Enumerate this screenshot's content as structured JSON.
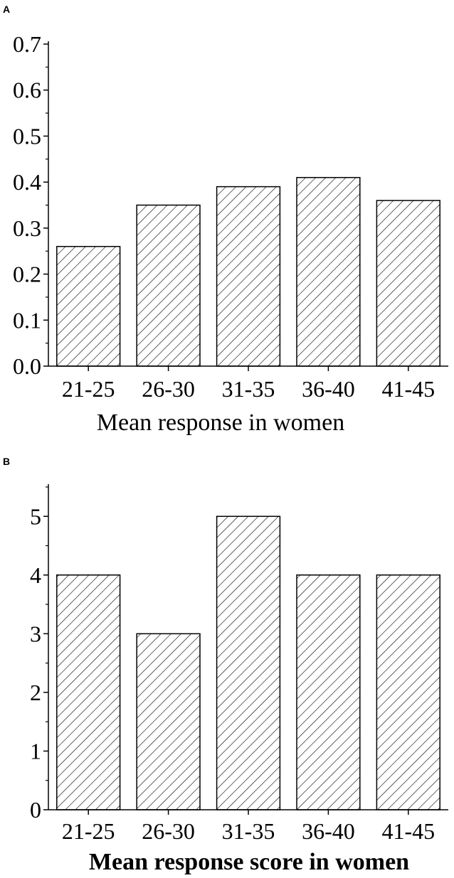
{
  "chart_data": [
    {
      "panel": "A",
      "type": "bar",
      "categories": [
        "21-25",
        "26-30",
        "31-35",
        "36-40",
        "41-45"
      ],
      "values": [
        0.26,
        0.35,
        0.39,
        0.41,
        0.36
      ],
      "xlabel": "Mean response in women",
      "ylim": [
        0,
        0.7
      ],
      "yticks": [
        "0.0",
        "0.1",
        "0.2",
        "0.3",
        "0.4",
        "0.5",
        "0.6",
        "0.7"
      ],
      "grid": false,
      "fill_pattern": "diagonal-hatch"
    },
    {
      "panel": "B",
      "type": "bar",
      "categories": [
        "21-25",
        "26-30",
        "31-35",
        "36-40",
        "41-45"
      ],
      "values": [
        4,
        3,
        5,
        4,
        4
      ],
      "xlabel": "Mean response score in women",
      "ylim": [
        0,
        5.5
      ],
      "yticks": [
        "0",
        "1",
        "2",
        "3",
        "4",
        "5"
      ],
      "grid": false,
      "fill_pattern": "diagonal-hatch"
    }
  ]
}
